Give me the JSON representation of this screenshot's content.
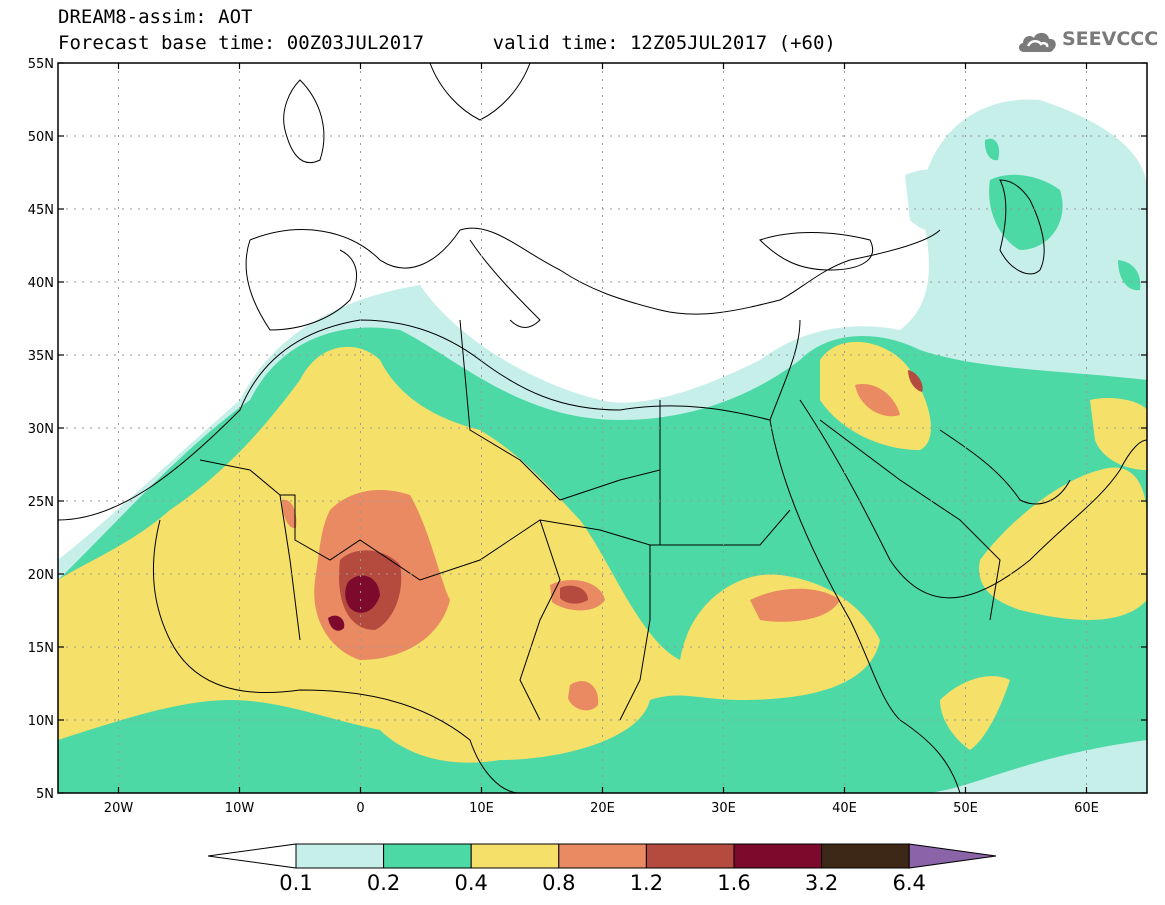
{
  "title": {
    "line1": "DREAM8-assim: AOT",
    "line2": "Forecast base time: 00Z03JUL2017      valid time: 12Z05JUL2017 (+60)"
  },
  "logo": {
    "text": "SEEVCCC",
    "icon": "cloud-icon"
  },
  "map": {
    "lon_range": [
      -25,
      65
    ],
    "lat_range": [
      5,
      55
    ],
    "lon_ticks": [
      {
        "value": -20,
        "label": "20W"
      },
      {
        "value": -10,
        "label": "10W"
      },
      {
        "value": 0,
        "label": "0"
      },
      {
        "value": 10,
        "label": "10E"
      },
      {
        "value": 20,
        "label": "20E"
      },
      {
        "value": 30,
        "label": "30E"
      },
      {
        "value": 40,
        "label": "40E"
      },
      {
        "value": 50,
        "label": "50E"
      },
      {
        "value": 60,
        "label": "60E"
      }
    ],
    "lat_ticks": [
      {
        "value": 55,
        "label": "55N"
      },
      {
        "value": 50,
        "label": "50N"
      },
      {
        "value": 45,
        "label": "45N"
      },
      {
        "value": 40,
        "label": "40N"
      },
      {
        "value": 35,
        "label": "35N"
      },
      {
        "value": 30,
        "label": "30N"
      },
      {
        "value": 25,
        "label": "25N"
      },
      {
        "value": 20,
        "label": "20N"
      },
      {
        "value": 15,
        "label": "15N"
      },
      {
        "value": 10,
        "label": "10N"
      },
      {
        "value": 5,
        "label": "5N"
      }
    ],
    "grid": true
  },
  "colorbar": {
    "labels": [
      "0.1",
      "0.2",
      "0.4",
      "0.8",
      "1.2",
      "1.6",
      "3.2",
      "6.4"
    ],
    "colors": [
      "#ffffff",
      "#c6efea",
      "#4dd9a6",
      "#f5e06a",
      "#e98a62",
      "#b54a3e",
      "#7d0a2c",
      "#3d2716",
      "#8a63a8"
    ]
  }
}
